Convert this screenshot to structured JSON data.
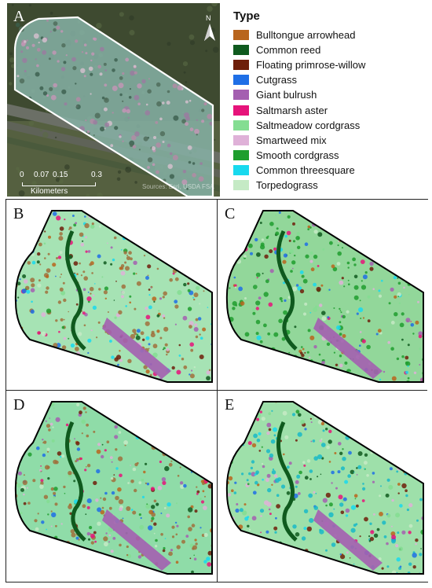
{
  "panel_a": {
    "label": "A",
    "north_label": "N",
    "scale_ticks": [
      "0",
      "0.07",
      "0.15",
      "0.3"
    ],
    "scale_units": "Kilometers",
    "attribution": "Sources: Esri, USDA FSA"
  },
  "legend": {
    "title": "Type",
    "items": [
      {
        "label": "Bulltongue arrowhead",
        "color": "#b8651d"
      },
      {
        "label": "Common reed",
        "color": "#0f5a1e"
      },
      {
        "label": "Floating primrose-willow",
        "color": "#6e1f0a"
      },
      {
        "label": "Cutgrass",
        "color": "#1f6fe6"
      },
      {
        "label": "Giant bulrush",
        "color": "#a45fb0"
      },
      {
        "label": "Saltmarsh aster",
        "color": "#e6137a"
      },
      {
        "label": "Saltmeadow cordgrass",
        "color": "#84dd92"
      },
      {
        "label": "Smartweed mix",
        "color": "#dfb1d8"
      },
      {
        "label": "Smooth cordgrass",
        "color": "#1e9e2e"
      },
      {
        "label": "Common threesquare",
        "color": "#18d9ee"
      },
      {
        "label": "Torpedograss",
        "color": "#c5eac5"
      }
    ]
  },
  "panels": [
    {
      "label": "B",
      "dominant": "#a6e3b4",
      "accent": "#a0703c"
    },
    {
      "label": "C",
      "dominant": "#92d79a",
      "accent": "#1e9e2e"
    },
    {
      "label": "D",
      "dominant": "#8fdca8",
      "accent": "#a0703c"
    },
    {
      "label": "E",
      "dominant": "#9ee0aa",
      "accent": "#18b8c8"
    }
  ]
}
